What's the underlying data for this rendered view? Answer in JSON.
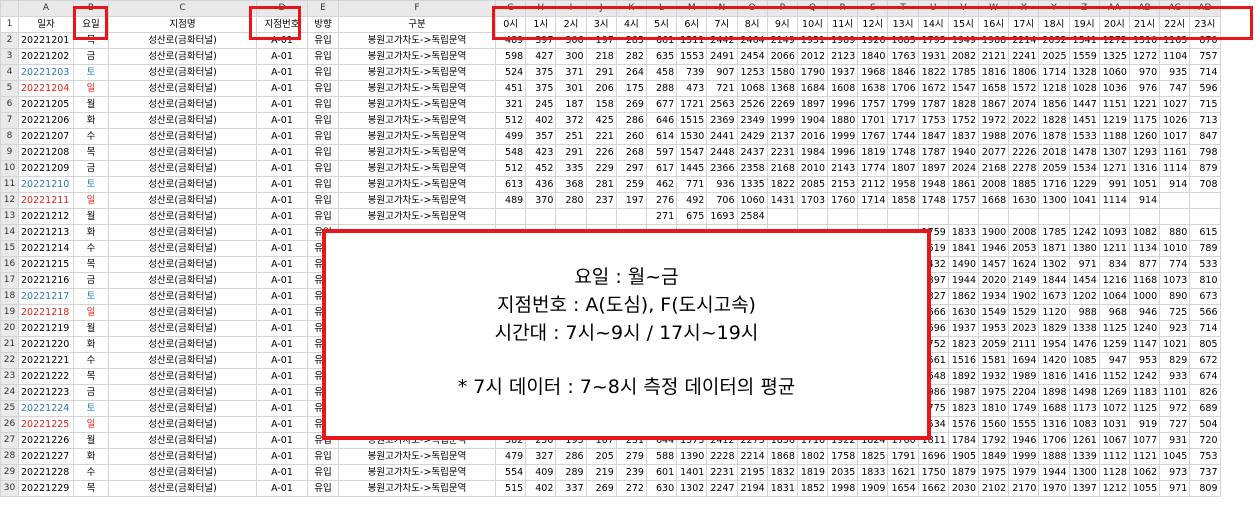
{
  "column_letters": [
    "A",
    "B",
    "C",
    "D",
    "E",
    "F",
    "G",
    "H",
    "I",
    "J",
    "K",
    "L",
    "M",
    "N",
    "O",
    "P",
    "Q",
    "R",
    "S",
    "T",
    "U",
    "V",
    "W",
    "X",
    "Y",
    "Z",
    "AA",
    "AB",
    "AC",
    "AD"
  ],
  "header_row": [
    "일자",
    "요일",
    "지점명",
    "지점번호",
    "방향",
    "구분",
    "0시",
    "1시",
    "2시",
    "3시",
    "4시",
    "5시",
    "6시",
    "7시",
    "8시",
    "9시",
    "10시",
    "11시",
    "12시",
    "13시",
    "14시",
    "15시",
    "16시",
    "17시",
    "18시",
    "19시",
    "20시",
    "21시",
    "22시",
    "23시"
  ],
  "rows": [
    {
      "date": "20221201",
      "day": "목",
      "color": "",
      "name": "성산로(금화터널)",
      "code": "A-01",
      "dir": "유입",
      "route": "봉원고가차도->독립문역",
      "hours": [
        "489",
        "397",
        "306",
        "197",
        "285",
        "661",
        "1511",
        "2442",
        "2464",
        "2149",
        "1951",
        "1989",
        "1926",
        "1685",
        "1793",
        "1949",
        "1988",
        "2214",
        "2052",
        "1541",
        "1272",
        "1310",
        "1163",
        "870"
      ]
    },
    {
      "date": "20221202",
      "day": "금",
      "color": "",
      "name": "성산로(금화터널)",
      "code": "A-01",
      "dir": "유입",
      "route": "봉원고가차도->독립문역",
      "hours": [
        "598",
        "427",
        "300",
        "218",
        "282",
        "635",
        "1553",
        "2491",
        "2454",
        "2066",
        "2012",
        "2123",
        "1840",
        "1763",
        "1931",
        "2082",
        "2121",
        "2241",
        "2025",
        "1559",
        "1325",
        "1272",
        "1104",
        "757"
      ]
    },
    {
      "date": "20221203",
      "day": "토",
      "color": "blue",
      "name": "성산로(금화터널)",
      "code": "A-01",
      "dir": "유입",
      "route": "봉원고가차도->독립문역",
      "hours": [
        "524",
        "375",
        "371",
        "291",
        "264",
        "458",
        "739",
        "907",
        "1253",
        "1580",
        "1790",
        "1937",
        "1968",
        "1846",
        "1822",
        "1785",
        "1816",
        "1806",
        "1714",
        "1328",
        "1060",
        "970",
        "935",
        "714"
      ]
    },
    {
      "date": "20221204",
      "day": "일",
      "color": "red",
      "name": "성산로(금화터널)",
      "code": "A-01",
      "dir": "유입",
      "route": "봉원고가차도->독립문역",
      "hours": [
        "451",
        "375",
        "301",
        "206",
        "175",
        "288",
        "473",
        "721",
        "1068",
        "1368",
        "1684",
        "1608",
        "1638",
        "1706",
        "1672",
        "1547",
        "1658",
        "1572",
        "1218",
        "1028",
        "1036",
        "976",
        "747",
        "596"
      ]
    },
    {
      "date": "20221205",
      "day": "월",
      "color": "",
      "name": "성산로(금화터널)",
      "code": "A-01",
      "dir": "유입",
      "route": "봉원고가차도->독립문역",
      "hours": [
        "321",
        "245",
        "187",
        "158",
        "269",
        "677",
        "1721",
        "2563",
        "2526",
        "2269",
        "1897",
        "1996",
        "1757",
        "1799",
        "1787",
        "1828",
        "1867",
        "2074",
        "1856",
        "1447",
        "1151",
        "1221",
        "1027",
        "715"
      ]
    },
    {
      "date": "20221206",
      "day": "화",
      "color": "",
      "name": "성산로(금화터널)",
      "code": "A-01",
      "dir": "유입",
      "route": "봉원고가차도->독립문역",
      "hours": [
        "512",
        "402",
        "372",
        "425",
        "286",
        "646",
        "1515",
        "2369",
        "2349",
        "1999",
        "1904",
        "1880",
        "1701",
        "1717",
        "1753",
        "1752",
        "1972",
        "2022",
        "1828",
        "1451",
        "1219",
        "1175",
        "1026",
        "713"
      ]
    },
    {
      "date": "20221207",
      "day": "수",
      "color": "",
      "name": "성산로(금화터널)",
      "code": "A-01",
      "dir": "유입",
      "route": "봉원고가차도->독립문역",
      "hours": [
        "499",
        "357",
        "251",
        "221",
        "260",
        "614",
        "1530",
        "2441",
        "2429",
        "2137",
        "2016",
        "1999",
        "1767",
        "1744",
        "1847",
        "1837",
        "1988",
        "2076",
        "1878",
        "1533",
        "1188",
        "1260",
        "1017",
        "847"
      ]
    },
    {
      "date": "20221208",
      "day": "목",
      "color": "",
      "name": "성산로(금화터널)",
      "code": "A-01",
      "dir": "유입",
      "route": "봉원고가차도->독립문역",
      "hours": [
        "548",
        "423",
        "291",
        "226",
        "268",
        "597",
        "1547",
        "2448",
        "2437",
        "2231",
        "1984",
        "1996",
        "1819",
        "1748",
        "1787",
        "1940",
        "2077",
        "2226",
        "2018",
        "1478",
        "1307",
        "1293",
        "1161",
        "798"
      ]
    },
    {
      "date": "20221209",
      "day": "금",
      "color": "",
      "name": "성산로(금화터널)",
      "code": "A-01",
      "dir": "유입",
      "route": "봉원고가차도->독립문역",
      "hours": [
        "512",
        "452",
        "335",
        "229",
        "297",
        "617",
        "1445",
        "2366",
        "2358",
        "2168",
        "2010",
        "2143",
        "1774",
        "1807",
        "1897",
        "2024",
        "2168",
        "2278",
        "2059",
        "1534",
        "1271",
        "1316",
        "1114",
        "879"
      ]
    },
    {
      "date": "20221210",
      "day": "토",
      "color": "blue",
      "name": "성산로(금화터널)",
      "code": "A-01",
      "dir": "유입",
      "route": "봉원고가차도->독립문역",
      "hours": [
        "613",
        "436",
        "368",
        "281",
        "259",
        "462",
        "771",
        "936",
        "1335",
        "1822",
        "2085",
        "2153",
        "2112",
        "1958",
        "1948",
        "1861",
        "2008",
        "1885",
        "1716",
        "1229",
        "991",
        "1051",
        "914",
        "708"
      ]
    },
    {
      "date": "20221211",
      "day": "일",
      "color": "red",
      "name": "성산로(금화터널)",
      "code": "A-01",
      "dir": "유입",
      "route": "봉원고가차도->독립문역",
      "hours": [
        "489",
        "370",
        "280",
        "237",
        "197",
        "276",
        "492",
        "706",
        "1060",
        "1431",
        "1703",
        "1760",
        "1714",
        "1858",
        "1748",
        "1757",
        "1668",
        "1630",
        "1300",
        "1041",
        "1114",
        "914",
        "",
        ""
      ]
    },
    {
      "date": "20221212",
      "day": "월",
      "color": "",
      "name": "성산로(금화터널)",
      "code": "A-01",
      "dir": "유입",
      "route": "봉원고가차도->독립문역",
      "hours": [
        "",
        "",
        "",
        "",
        "",
        "271",
        "675",
        "1693",
        "2584",
        "",
        "",
        "",
        "",
        "",
        "",
        "",
        "",
        "",
        "",
        "",
        "",
        "",
        "",
        ""
      ]
    },
    {
      "date": "20221213",
      "day": "화",
      "color": "",
      "name": "성산로(금화터널)",
      "code": "A-01",
      "dir": "유입",
      "route": "",
      "hours": [
        "",
        "",
        "",
        "",
        "",
        "",
        "",
        "",
        "",
        "",
        "",
        "",
        "",
        "",
        "1759",
        "1833",
        "1900",
        "2008",
        "1785",
        "1242",
        "1093",
        "1082",
        "880",
        "615"
      ]
    },
    {
      "date": "20221214",
      "day": "수",
      "color": "",
      "name": "성산로(금화터널)",
      "code": "A-01",
      "dir": "유입",
      "route": "",
      "hours": [
        "",
        "",
        "",
        "",
        "",
        "",
        "",
        "",
        "",
        "",
        "",
        "",
        "",
        "",
        "1619",
        "1841",
        "1946",
        "2053",
        "1871",
        "1380",
        "1211",
        "1134",
        "1010",
        "789"
      ]
    },
    {
      "date": "20221215",
      "day": "목",
      "color": "",
      "name": "성산로(금화터널)",
      "code": "A-01",
      "dir": "유입",
      "route": "",
      "hours": [
        "",
        "",
        "",
        "",
        "",
        "",
        "",
        "",
        "",
        "",
        "",
        "",
        "",
        "",
        "1432",
        "1490",
        "1457",
        "1624",
        "1302",
        "971",
        "834",
        "877",
        "774",
        "533"
      ]
    },
    {
      "date": "20221216",
      "day": "금",
      "color": "",
      "name": "성산로(금화터널)",
      "code": "A-01",
      "dir": "유입",
      "route": "",
      "hours": [
        "",
        "",
        "",
        "",
        "",
        "",
        "",
        "",
        "",
        "",
        "",
        "",
        "",
        "",
        "1897",
        "1944",
        "2020",
        "2149",
        "1844",
        "1454",
        "1216",
        "1168",
        "1073",
        "810"
      ]
    },
    {
      "date": "20221217",
      "day": "토",
      "color": "blue",
      "name": "성산로(금화터널)",
      "code": "A-01",
      "dir": "유입",
      "route": "",
      "hours": [
        "",
        "",
        "",
        "",
        "",
        "",
        "",
        "",
        "",
        "",
        "",
        "",
        "",
        "",
        "1827",
        "1862",
        "1934",
        "1902",
        "1673",
        "1202",
        "1064",
        "1000",
        "890",
        "673"
      ]
    },
    {
      "date": "20221218",
      "day": "일",
      "color": "red",
      "name": "성산로(금화터널)",
      "code": "A-01",
      "dir": "유입",
      "route": "",
      "hours": [
        "",
        "",
        "",
        "",
        "",
        "",
        "",
        "",
        "",
        "",
        "",
        "",
        "",
        "",
        "1666",
        "1630",
        "1549",
        "1529",
        "1120",
        "988",
        "968",
        "946",
        "725",
        "566"
      ]
    },
    {
      "date": "20221219",
      "day": "월",
      "color": "",
      "name": "성산로(금화터널)",
      "code": "A-01",
      "dir": "유입",
      "route": "",
      "hours": [
        "",
        "",
        "",
        "",
        "",
        "",
        "",
        "",
        "",
        "",
        "",
        "",
        "",
        "",
        "1696",
        "1937",
        "1953",
        "2023",
        "1829",
        "1338",
        "1125",
        "1240",
        "923",
        "714"
      ]
    },
    {
      "date": "20221220",
      "day": "화",
      "color": "",
      "name": "성산로(금화터널)",
      "code": "A-01",
      "dir": "유입",
      "route": "",
      "hours": [
        "",
        "",
        "",
        "",
        "",
        "",
        "",
        "",
        "",
        "",
        "",
        "",
        "",
        "",
        "1752",
        "1823",
        "2059",
        "2111",
        "1954",
        "1476",
        "1259",
        "1147",
        "1021",
        "805"
      ]
    },
    {
      "date": "20221221",
      "day": "수",
      "color": "",
      "name": "성산로(금화터널)",
      "code": "A-01",
      "dir": "유입",
      "route": "",
      "hours": [
        "",
        "",
        "",
        "",
        "",
        "",
        "",
        "",
        "",
        "",
        "",
        "",
        "",
        "",
        "1561",
        "1516",
        "1581",
        "1694",
        "1420",
        "1085",
        "947",
        "953",
        "829",
        "672"
      ]
    },
    {
      "date": "20221222",
      "day": "목",
      "color": "",
      "name": "성산로(금화터널)",
      "code": "A-01",
      "dir": "유입",
      "route": "",
      "hours": [
        "",
        "",
        "",
        "",
        "",
        "",
        "",
        "",
        "",
        "",
        "",
        "",
        "",
        "",
        "1648",
        "1892",
        "1932",
        "1989",
        "1816",
        "1416",
        "1152",
        "1242",
        "933",
        "674"
      ]
    },
    {
      "date": "20221223",
      "day": "금",
      "color": "",
      "name": "성산로(금화터널)",
      "code": "A-01",
      "dir": "유입",
      "route": "",
      "hours": [
        "",
        "",
        "",
        "",
        "",
        "",
        "",
        "",
        "",
        "",
        "",
        "",
        "",
        "",
        "1986",
        "1987",
        "1975",
        "2204",
        "1898",
        "1498",
        "1269",
        "1183",
        "1101",
        "826"
      ]
    },
    {
      "date": "20221224",
      "day": "토",
      "color": "blue",
      "name": "성산로(금화터널)",
      "code": "A-01",
      "dir": "유입",
      "route": "",
      "hours": [
        "",
        "",
        "",
        "",
        "",
        "",
        "",
        "",
        "",
        "",
        "",
        "",
        "",
        "",
        "1775",
        "1823",
        "1810",
        "1749",
        "1688",
        "1173",
        "1072",
        "1125",
        "972",
        "689"
      ]
    },
    {
      "date": "20221225",
      "day": "일",
      "color": "red",
      "name": "성산로(금화터널)",
      "code": "A-01",
      "dir": "유입",
      "route": "",
      "hours": [
        "",
        "",
        "",
        "",
        "",
        "",
        "",
        "",
        "",
        "",
        "",
        "",
        "",
        "",
        "1534",
        "1576",
        "1560",
        "1555",
        "1316",
        "1083",
        "1031",
        "919",
        "727",
        "504"
      ]
    },
    {
      "date": "20221226",
      "day": "월",
      "color": "",
      "name": "성산로(금화터널)",
      "code": "A-01",
      "dir": "유입",
      "route": "봉원고가차도->독립문역",
      "hours": [
        "382",
        "250",
        "193",
        "167",
        "231",
        "644",
        "1573",
        "2412",
        "2273",
        "1856",
        "1716",
        "1922",
        "1824",
        "1760",
        "1811",
        "1784",
        "1792",
        "1946",
        "1706",
        "1261",
        "1067",
        "1077",
        "931",
        "720"
      ]
    },
    {
      "date": "20221227",
      "day": "화",
      "color": "",
      "name": "성산로(금화터널)",
      "code": "A-01",
      "dir": "유입",
      "route": "봉원고가차도->독립문역",
      "hours": [
        "479",
        "327",
        "286",
        "205",
        "279",
        "588",
        "1390",
        "2228",
        "2214",
        "1868",
        "1802",
        "1758",
        "1825",
        "1791",
        "1696",
        "1905",
        "1849",
        "1999",
        "1888",
        "1339",
        "1112",
        "1121",
        "1045",
        "753"
      ]
    },
    {
      "date": "20221228",
      "day": "수",
      "color": "",
      "name": "성산로(금화터널)",
      "code": "A-01",
      "dir": "유입",
      "route": "봉원고가차도->독립문역",
      "hours": [
        "554",
        "409",
        "289",
        "219",
        "239",
        "601",
        "1401",
        "2231",
        "2195",
        "1832",
        "1819",
        "2035",
        "1833",
        "1621",
        "1750",
        "1879",
        "1975",
        "1979",
        "1944",
        "1300",
        "1128",
        "1062",
        "973",
        "737"
      ]
    },
    {
      "date": "20221229",
      "day": "목",
      "color": "",
      "name": "성산로(금화터널)",
      "code": "A-01",
      "dir": "유입",
      "route": "봉원고가차도->독립문역",
      "hours": [
        "515",
        "402",
        "337",
        "269",
        "272",
        "630",
        "1302",
        "2247",
        "2194",
        "1831",
        "1852",
        "1998",
        "1909",
        "1654",
        "1662",
        "2030",
        "2102",
        "2170",
        "1970",
        "1397",
        "1212",
        "1055",
        "971",
        "809"
      ]
    }
  ],
  "overlay": {
    "line1": "요일 : 월~금",
    "line2": "지점번호 : A(도심), F(도시고속)",
    "line3": "시간대 : 7시~9시 / 17시~19시",
    "line4": "* 7시 데이터 : 7~8시 측정 데이터의 평균"
  },
  "accent_colors": {
    "highlight": "#e8151b",
    "weekend_blue": "#2e75b6",
    "weekend_red": "#e0201a"
  }
}
